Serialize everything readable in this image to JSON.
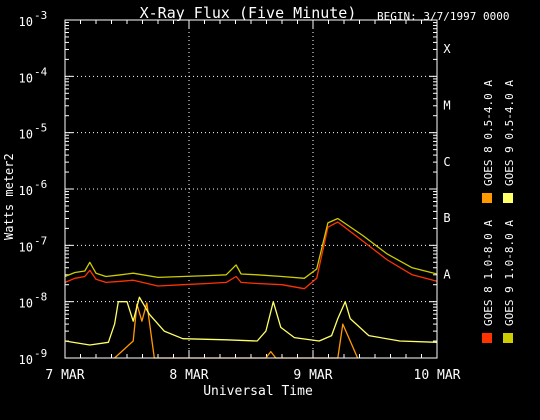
{
  "chart_data": {
    "type": "line",
    "title": "X-Ray Flux (Five Minute)",
    "begin_label": "BEGIN: 3/7/1997 0000",
    "xlabel": "Universal Time",
    "ylabel": "Watts meter2",
    "y_scale": "log",
    "ylim": [
      1e-09,
      0.001
    ],
    "y_ticks": [
      {
        "base": "10",
        "exp": "-9",
        "value": 1e-09
      },
      {
        "base": "10",
        "exp": "-8",
        "value": 1e-08
      },
      {
        "base": "10",
        "exp": "-7",
        "value": 1e-07
      },
      {
        "base": "10",
        "exp": "-6",
        "value": 1e-06
      },
      {
        "base": "10",
        "exp": "-5",
        "value": 1e-05
      },
      {
        "base": "10",
        "exp": "-4",
        "value": 0.0001
      },
      {
        "base": "10",
        "exp": "-3",
        "value": 0.001
      }
    ],
    "x_ticks": [
      {
        "label": "7 MAR",
        "day": 0
      },
      {
        "label": "8 MAR",
        "day": 1
      },
      {
        "label": "9 MAR",
        "day": 2
      },
      {
        "label": "10 MAR",
        "day": 3
      }
    ],
    "xlim_days": [
      0,
      3
    ],
    "flare_classes": [
      {
        "label": "A",
        "value": 1e-08
      },
      {
        "label": "B",
        "value": 1e-07
      },
      {
        "label": "C",
        "value": 1e-06
      },
      {
        "label": "M",
        "value": 1e-05
      },
      {
        "label": "X",
        "value": 0.0001
      }
    ],
    "grid": "dotted",
    "legend_placement": "right",
    "series": [
      {
        "name": "GOES 8 1.0-8.0 A",
        "color": "#ff3300",
        "points": [
          [
            0,
            2.2e-08
          ],
          [
            0.08,
            2.6e-08
          ],
          [
            0.16,
            2.8e-08
          ],
          [
            0.2,
            3.6e-08
          ],
          [
            0.25,
            2.5e-08
          ],
          [
            0.33,
            2.2e-08
          ],
          [
            0.45,
            2.3e-08
          ],
          [
            0.55,
            2.4e-08
          ],
          [
            0.75,
            1.9e-08
          ],
          [
            0.95,
            2e-08
          ],
          [
            1.15,
            2.1e-08
          ],
          [
            1.3,
            2.2e-08
          ],
          [
            1.38,
            2.8e-08
          ],
          [
            1.42,
            2.2e-08
          ],
          [
            1.55,
            2.1e-08
          ],
          [
            1.75,
            2e-08
          ],
          [
            1.93,
            1.7e-08
          ],
          [
            2.03,
            2.6e-08
          ],
          [
            2.12,
            2.1e-07
          ],
          [
            2.2,
            2.6e-07
          ],
          [
            2.4,
            1.2e-07
          ],
          [
            2.6,
            5.5e-08
          ],
          [
            2.8,
            3e-08
          ],
          [
            3.0,
            2.3e-08
          ]
        ]
      },
      {
        "name": "GOES 8 0.5-4.0 A",
        "color": "#ff9900",
        "points": [
          [
            0.4,
            1e-09
          ],
          [
            0.55,
            2e-09
          ],
          [
            0.58,
            9e-09
          ],
          [
            0.62,
            4.5e-09
          ],
          [
            0.66,
            9.5e-09
          ],
          [
            0.72,
            1e-09
          ],
          [
            1.62,
            1e-09
          ],
          [
            1.66,
            1.3e-09
          ],
          [
            1.7,
            1e-09
          ],
          [
            2.2,
            1e-09
          ],
          [
            2.24,
            4e-09
          ],
          [
            2.3,
            2e-09
          ],
          [
            2.36,
            1e-09
          ]
        ]
      },
      {
        "name": "GOES 9 1.0-8.0 A",
        "color": "#cccc00",
        "points": [
          [
            0,
            2.8e-08
          ],
          [
            0.08,
            3.3e-08
          ],
          [
            0.16,
            3.5e-08
          ],
          [
            0.2,
            5e-08
          ],
          [
            0.25,
            3.2e-08
          ],
          [
            0.33,
            2.8e-08
          ],
          [
            0.45,
            3e-08
          ],
          [
            0.55,
            3.2e-08
          ],
          [
            0.75,
            2.7e-08
          ],
          [
            0.95,
            2.8e-08
          ],
          [
            1.15,
            2.9e-08
          ],
          [
            1.3,
            3e-08
          ],
          [
            1.38,
            4.5e-08
          ],
          [
            1.42,
            3.1e-08
          ],
          [
            1.55,
            3e-08
          ],
          [
            1.75,
            2.8e-08
          ],
          [
            1.93,
            2.6e-08
          ],
          [
            2.03,
            3.8e-08
          ],
          [
            2.12,
            2.5e-07
          ],
          [
            2.2,
            3e-07
          ],
          [
            2.4,
            1.5e-07
          ],
          [
            2.6,
            7e-08
          ],
          [
            2.8,
            4e-08
          ],
          [
            3.0,
            3.1e-08
          ]
        ]
      },
      {
        "name": "GOES 9 0.5-4.0 A",
        "color": "#ffff66",
        "points": [
          [
            0,
            2e-09
          ],
          [
            0.2,
            1.7e-09
          ],
          [
            0.35,
            1.9e-09
          ],
          [
            0.4,
            4e-09
          ],
          [
            0.43,
            1e-08
          ],
          [
            0.5,
            1e-08
          ],
          [
            0.55,
            4.5e-09
          ],
          [
            0.6,
            1.2e-08
          ],
          [
            0.68,
            6e-09
          ],
          [
            0.8,
            3e-09
          ],
          [
            0.95,
            2.2e-09
          ],
          [
            1.3,
            2.1e-09
          ],
          [
            1.55,
            2e-09
          ],
          [
            1.62,
            3e-09
          ],
          [
            1.68,
            1e-08
          ],
          [
            1.74,
            3.5e-09
          ],
          [
            1.85,
            2.3e-09
          ],
          [
            2.05,
            2e-09
          ],
          [
            2.15,
            2.5e-09
          ],
          [
            2.2,
            5e-09
          ],
          [
            2.26,
            1e-08
          ],
          [
            2.3,
            5e-09
          ],
          [
            2.45,
            2.5e-09
          ],
          [
            2.7,
            2e-09
          ],
          [
            3.0,
            1.9e-09
          ]
        ]
      }
    ]
  }
}
